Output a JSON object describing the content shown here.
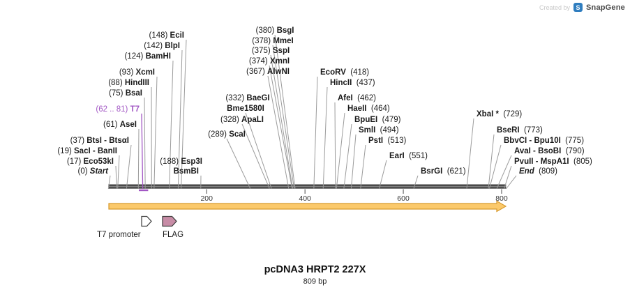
{
  "credit": {
    "prefix": "Created by",
    "brand": "SnapGene",
    "logo_letter": "S"
  },
  "plasmid": {
    "name": "pcDNA3 HRPT2 227X",
    "size": "809 bp",
    "total_bp": 809
  },
  "ruler": {
    "ticks": [
      200,
      400,
      600,
      800
    ]
  },
  "features": [
    {
      "label": "T7 promoter",
      "span": "62 .. 81",
      "fill": "#ffffff"
    },
    {
      "label": "FLAG",
      "fill": "#c78ca6"
    }
  ],
  "colors": {
    "t7_label": "#a257c4",
    "site_line": "#9b9b9b",
    "bar": "#4a4a4a",
    "bar_inner": "#8a8a8a",
    "insert_fill": "#fbc96b",
    "insert_stroke": "#d79a2e",
    "flag_fill": "#c78ca6",
    "feature_stroke": "#3a3a3a",
    "text": "#1a1a1a",
    "tick_text": "#333333",
    "brand_blue": "#2f7dbf"
  },
  "sites": [
    {
      "pos": "(148)",
      "name": "EciI",
      "order": "pre",
      "bp": 148
    },
    {
      "pos": "(142)",
      "name": "BlpI",
      "order": "pre",
      "bp": 142
    },
    {
      "pos": "(124)",
      "name": "BamHI",
      "order": "pre",
      "bp": 124
    },
    {
      "pos": "(93)",
      "name": "XcmI",
      "order": "pre",
      "bp": 93
    },
    {
      "pos": "(88)",
      "name": "HindIII",
      "order": "pre",
      "bp": 88
    },
    {
      "pos": "(75)",
      "name": "BsaI",
      "order": "pre",
      "bp": 75
    },
    {
      "pos": "(62 .. 81)",
      "name": "T7",
      "order": "pre",
      "bp": 70,
      "color": "#a257c4",
      "feature_span": [
        62,
        81
      ]
    },
    {
      "pos": "(61)",
      "name": "AseI",
      "order": "pre",
      "bp": 61
    },
    {
      "pos": "(37)",
      "name": "BtsI - BtsαI",
      "order": "pre",
      "bp": 37
    },
    {
      "pos": "(19)",
      "name": "SacI - BanII",
      "order": "pre",
      "bp": 19
    },
    {
      "pos": "(17)",
      "name": "Eco53kI",
      "order": "pre",
      "bp": 17
    },
    {
      "pos": "(188)",
      "name": "Esp3I",
      "order": "pre",
      "bp": 188,
      "noline": true
    },
    {
      "pos": "",
      "name": "BsmBI",
      "order": "pre",
      "bp": 188
    },
    {
      "pos": "(0)",
      "name": "Start",
      "order": "pre",
      "bp": 0,
      "italic": true
    },
    {
      "pos": "(380)",
      "name": "BsgI",
      "order": "pre",
      "bp": 380
    },
    {
      "pos": "(378)",
      "name": "MmeI",
      "order": "pre",
      "bp": 378
    },
    {
      "pos": "(375)",
      "name": "SspI",
      "order": "pre",
      "bp": 375
    },
    {
      "pos": "(374)",
      "name": "XmnI",
      "order": "pre",
      "bp": 374
    },
    {
      "pos": "(367)",
      "name": "AlwNI",
      "order": "pre",
      "bp": 367
    },
    {
      "pos": "(332)",
      "name": "BaeGI",
      "order": "pre",
      "bp": 332,
      "noline": true
    },
    {
      "pos": "",
      "name": "Bme1580I",
      "order": "pre",
      "bp": 332
    },
    {
      "pos": "(328)",
      "name": "ApaLI",
      "order": "pre",
      "bp": 328
    },
    {
      "pos": "(289)",
      "name": "ScaI",
      "order": "pre",
      "bp": 289
    },
    {
      "pos": "(418)",
      "name": "EcoRV",
      "order": "post",
      "bp": 418
    },
    {
      "pos": "(437)",
      "name": "HincII",
      "order": "post",
      "bp": 437
    },
    {
      "pos": "(462)",
      "name": "AfeI",
      "order": "post",
      "bp": 462
    },
    {
      "pos": "(464)",
      "name": "HaeII",
      "order": "post",
      "bp": 464
    },
    {
      "pos": "(479)",
      "name": "BpuEI",
      "order": "post",
      "bp": 479
    },
    {
      "pos": "(494)",
      "name": "SmlI",
      "order": "post",
      "bp": 494
    },
    {
      "pos": "(513)",
      "name": "PstI",
      "order": "post",
      "bp": 513
    },
    {
      "pos": "(551)",
      "name": "EarI",
      "order": "post",
      "bp": 551
    },
    {
      "pos": "(621)",
      "name": "BsrGI",
      "order": "post",
      "bp": 621
    },
    {
      "pos": "(729)",
      "name": "XbaI *",
      "order": "post",
      "bp": 729
    },
    {
      "pos": "(773)",
      "name": "BseRI",
      "order": "post",
      "bp": 773
    },
    {
      "pos": "(775)",
      "name": "BbvCI - Bpu10I",
      "order": "post",
      "bp": 775
    },
    {
      "pos": "(790)",
      "name": "AvaI - BsoBI",
      "order": "post",
      "bp": 790
    },
    {
      "pos": "(805)",
      "name": "PvuII - MspA1I",
      "order": "post",
      "bp": 805
    },
    {
      "pos": "(809)",
      "name": "End",
      "order": "post",
      "bp": 809,
      "italic": true
    }
  ]
}
